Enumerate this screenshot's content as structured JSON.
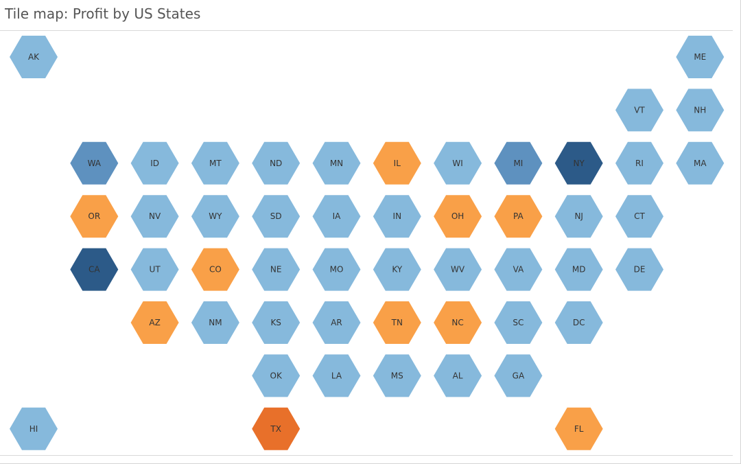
{
  "title": "Tile map: Profit by US States",
  "colors": {
    "high_profit": "#2c5a88",
    "mid_profit": "#5e91bf",
    "low_profit": "#86b9dc",
    "small_loss": "#f9a048",
    "large_loss": "#e8702a"
  },
  "chart_data": {
    "type": "heatmap",
    "measure": "Profit",
    "tiles": [
      {
        "state": "AK",
        "row": 0,
        "col": 0,
        "level": "low_profit"
      },
      {
        "state": "ME",
        "row": 0,
        "col": 11,
        "level": "low_profit"
      },
      {
        "state": "VT",
        "row": 1,
        "col": 10,
        "level": "low_profit"
      },
      {
        "state": "NH",
        "row": 1,
        "col": 11,
        "level": "low_profit"
      },
      {
        "state": "WA",
        "row": 2,
        "col": 1,
        "level": "mid_profit"
      },
      {
        "state": "ID",
        "row": 2,
        "col": 2,
        "level": "low_profit"
      },
      {
        "state": "MT",
        "row": 2,
        "col": 3,
        "level": "low_profit"
      },
      {
        "state": "ND",
        "row": 2,
        "col": 4,
        "level": "low_profit"
      },
      {
        "state": "MN",
        "row": 2,
        "col": 5,
        "level": "low_profit"
      },
      {
        "state": "IL",
        "row": 2,
        "col": 6,
        "level": "small_loss"
      },
      {
        "state": "WI",
        "row": 2,
        "col": 7,
        "level": "low_profit"
      },
      {
        "state": "MI",
        "row": 2,
        "col": 8,
        "level": "mid_profit"
      },
      {
        "state": "NY",
        "row": 2,
        "col": 9,
        "level": "high_profit"
      },
      {
        "state": "RI",
        "row": 2,
        "col": 10,
        "level": "low_profit"
      },
      {
        "state": "MA",
        "row": 2,
        "col": 11,
        "level": "low_profit"
      },
      {
        "state": "OR",
        "row": 3,
        "col": 1,
        "level": "small_loss"
      },
      {
        "state": "NV",
        "row": 3,
        "col": 2,
        "level": "low_profit"
      },
      {
        "state": "WY",
        "row": 3,
        "col": 3,
        "level": "low_profit"
      },
      {
        "state": "SD",
        "row": 3,
        "col": 4,
        "level": "low_profit"
      },
      {
        "state": "IA",
        "row": 3,
        "col": 5,
        "level": "low_profit"
      },
      {
        "state": "IN",
        "row": 3,
        "col": 6,
        "level": "low_profit"
      },
      {
        "state": "OH",
        "row": 3,
        "col": 7,
        "level": "small_loss"
      },
      {
        "state": "PA",
        "row": 3,
        "col": 8,
        "level": "small_loss"
      },
      {
        "state": "NJ",
        "row": 3,
        "col": 9,
        "level": "low_profit"
      },
      {
        "state": "CT",
        "row": 3,
        "col": 10,
        "level": "low_profit"
      },
      {
        "state": "CA",
        "row": 4,
        "col": 1,
        "level": "high_profit"
      },
      {
        "state": "UT",
        "row": 4,
        "col": 2,
        "level": "low_profit"
      },
      {
        "state": "CO",
        "row": 4,
        "col": 3,
        "level": "small_loss"
      },
      {
        "state": "NE",
        "row": 4,
        "col": 4,
        "level": "low_profit"
      },
      {
        "state": "MO",
        "row": 4,
        "col": 5,
        "level": "low_profit"
      },
      {
        "state": "KY",
        "row": 4,
        "col": 6,
        "level": "low_profit"
      },
      {
        "state": "WV",
        "row": 4,
        "col": 7,
        "level": "low_profit"
      },
      {
        "state": "VA",
        "row": 4,
        "col": 8,
        "level": "low_profit"
      },
      {
        "state": "MD",
        "row": 4,
        "col": 9,
        "level": "low_profit"
      },
      {
        "state": "DE",
        "row": 4,
        "col": 10,
        "level": "low_profit"
      },
      {
        "state": "AZ",
        "row": 5,
        "col": 2,
        "level": "small_loss"
      },
      {
        "state": "NM",
        "row": 5,
        "col": 3,
        "level": "low_profit"
      },
      {
        "state": "KS",
        "row": 5,
        "col": 4,
        "level": "low_profit"
      },
      {
        "state": "AR",
        "row": 5,
        "col": 5,
        "level": "low_profit"
      },
      {
        "state": "TN",
        "row": 5,
        "col": 6,
        "level": "small_loss"
      },
      {
        "state": "NC",
        "row": 5,
        "col": 7,
        "level": "small_loss"
      },
      {
        "state": "SC",
        "row": 5,
        "col": 8,
        "level": "low_profit"
      },
      {
        "state": "DC",
        "row": 5,
        "col": 9,
        "level": "low_profit"
      },
      {
        "state": "OK",
        "row": 6,
        "col": 4,
        "level": "low_profit"
      },
      {
        "state": "LA",
        "row": 6,
        "col": 5,
        "level": "low_profit"
      },
      {
        "state": "MS",
        "row": 6,
        "col": 6,
        "level": "low_profit"
      },
      {
        "state": "AL",
        "row": 6,
        "col": 7,
        "level": "low_profit"
      },
      {
        "state": "GA",
        "row": 6,
        "col": 8,
        "level": "low_profit"
      },
      {
        "state": "HI",
        "row": 7,
        "col": 0,
        "level": "low_profit"
      },
      {
        "state": "TX",
        "row": 7,
        "col": 4,
        "level": "large_loss"
      },
      {
        "state": "FL",
        "row": 7,
        "col": 9,
        "level": "small_loss"
      }
    ]
  }
}
